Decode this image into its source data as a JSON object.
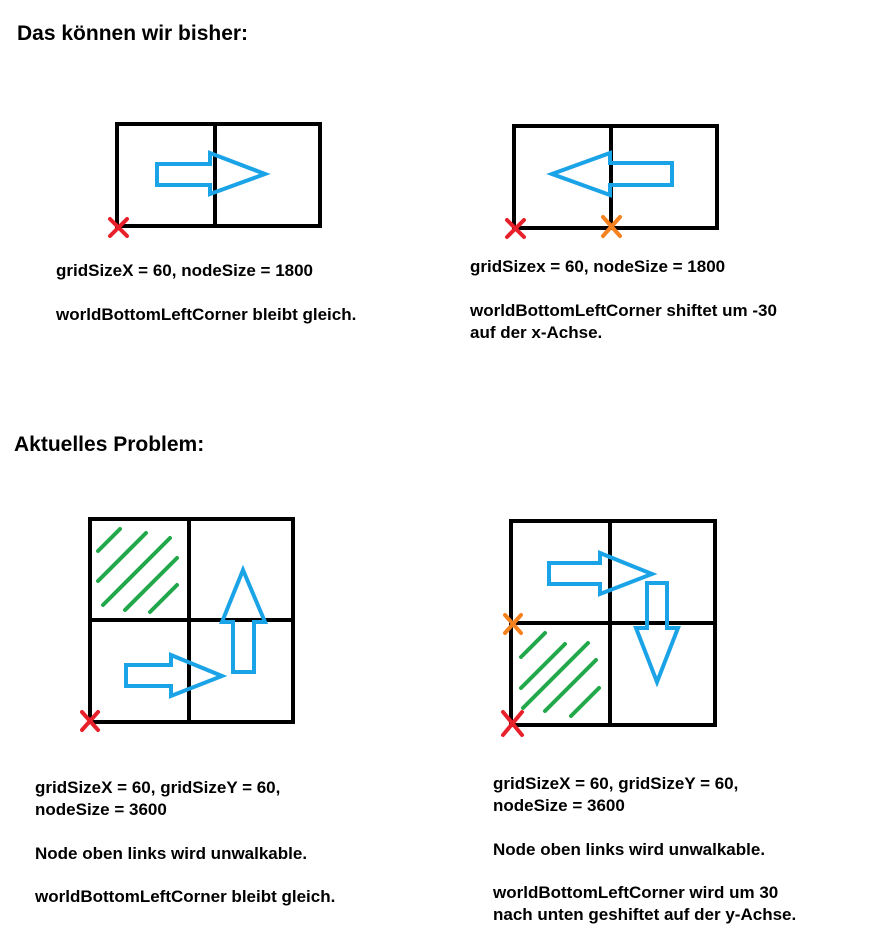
{
  "headings": {
    "top": "Das können wir  bisher:",
    "bottom": "Aktuelles Problem:"
  },
  "panels": [
    {
      "line1": "gridSizeX = 60, nodeSize = 1800",
      "line2": "worldBottomLeftCorner bleibt gleich."
    },
    {
      "line1": "gridSizex = 60, nodeSize = 1800",
      "line2a": "worldBottomLeftCorner shiftet um -30",
      "line2b": "auf der x-Achse."
    },
    {
      "line1": "gridSizeX = 60, gridSizeY = 60,",
      "line1b": "nodeSize = 3600",
      "line2": "Node oben links wird unwalkable.",
      "line3": "worldBottomLeftCorner bleibt gleich."
    },
    {
      "line1": "gridSizeX = 60, gridSizeY = 60,",
      "line1b": "nodeSize = 3600",
      "line2": "Node oben links wird unwalkable.",
      "line3a": "worldBottomLeftCorner wird um 30",
      "line3b": "nach unten geshiftet auf der y-Achse."
    }
  ],
  "colors": {
    "grid": "#000000",
    "arrow": "#1aa3e6",
    "x_red": "#e8202a",
    "x_orange": "#f5821f",
    "hatch": "#22a84a"
  },
  "icons": [
    "arrow-right-icon",
    "arrow-left-icon",
    "arrow-up-icon",
    "arrow-down-icon",
    "red-x-marker-icon",
    "orange-x-marker-icon"
  ]
}
